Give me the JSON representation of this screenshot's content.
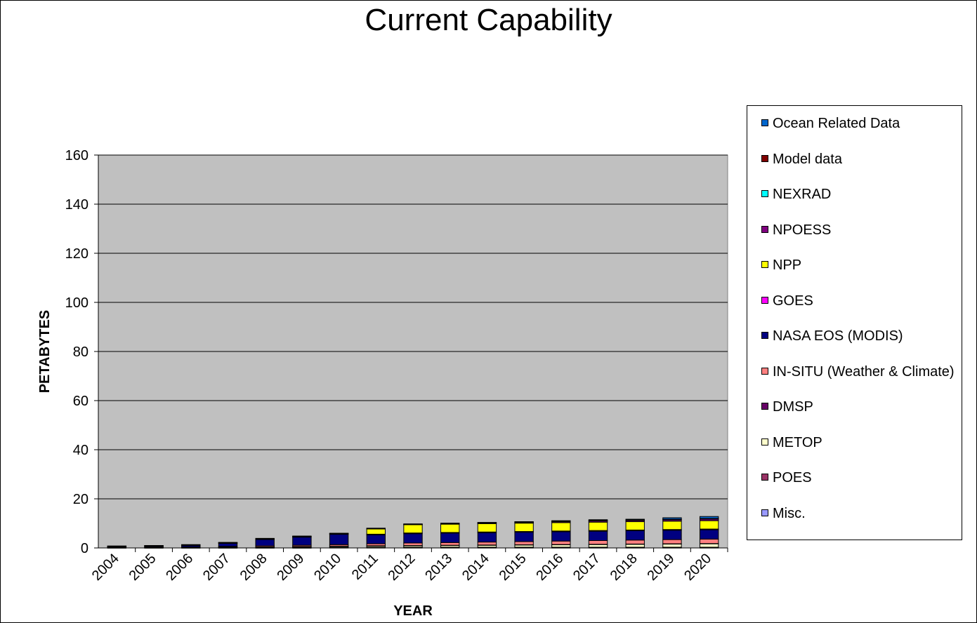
{
  "chart_data": {
    "type": "bar",
    "stacked": true,
    "title": "Current Capability",
    "xlabel": "YEAR",
    "ylabel": "PETABYTES",
    "ylim": [
      0,
      160
    ],
    "yticks": [
      "0",
      "20",
      "40",
      "60",
      "80",
      "100",
      "120",
      "140",
      "160"
    ],
    "grid": true,
    "plot_background": "#C0C0C0",
    "legend_position": "right",
    "categories": [
      "2004",
      "2005",
      "2006",
      "2007",
      "2008",
      "2009",
      "2010",
      "2011",
      "2012",
      "2013",
      "2014",
      "2015",
      "2016",
      "2017",
      "2018",
      "2019",
      "2020"
    ],
    "series": [
      {
        "name": "Misc.",
        "color": "#9999FF",
        "values": [
          0.05,
          0.05,
          0.05,
          0.05,
          0.05,
          0.05,
          0.1,
          0.1,
          0.1,
          0.1,
          0.1,
          0.1,
          0.1,
          0.1,
          0.1,
          0.1,
          0.1
        ]
      },
      {
        "name": "POES",
        "color": "#993366",
        "values": [
          0.1,
          0.1,
          0.1,
          0.1,
          0.1,
          0.15,
          0.15,
          0.2,
          0.2,
          0.2,
          0.2,
          0.2,
          0.2,
          0.2,
          0.2,
          0.2,
          0.2
        ]
      },
      {
        "name": "METOP",
        "color": "#FFFFCC",
        "values": [
          0,
          0,
          0,
          0.1,
          0.2,
          0.3,
          0.4,
          0.5,
          0.6,
          0.7,
          0.8,
          0.9,
          1.0,
          1.1,
          1.2,
          1.3,
          1.4
        ]
      },
      {
        "name": "DMSP",
        "color": "#660066",
        "values": [
          0.1,
          0.1,
          0.1,
          0.1,
          0.1,
          0.1,
          0.1,
          0.1,
          0.1,
          0.1,
          0.1,
          0.1,
          0.1,
          0.1,
          0.1,
          0.1,
          0.1
        ]
      },
      {
        "name": "IN-SITU (Weather & Climate)",
        "color": "#FF8080",
        "values": [
          0.1,
          0.1,
          0.2,
          0.3,
          0.4,
          0.5,
          0.6,
          0.8,
          1.0,
          1.1,
          1.2,
          1.3,
          1.4,
          1.5,
          1.6,
          1.7,
          1.8
        ]
      },
      {
        "name": "NASA EOS (MODIS)",
        "color": "#000080",
        "values": [
          0.2,
          0.4,
          0.6,
          1.2,
          2.6,
          3.3,
          4.2,
          3.6,
          3.8,
          3.8,
          3.8,
          3.8,
          3.8,
          3.8,
          3.8,
          3.8,
          3.8
        ]
      },
      {
        "name": "GOES",
        "color": "#FF00FF",
        "values": [
          0.05,
          0.05,
          0.1,
          0.2,
          0.2,
          0.2,
          0.2,
          0.3,
          0.3,
          0.3,
          0.3,
          0.3,
          0.3,
          0.3,
          0.3,
          0.3,
          0.3
        ]
      },
      {
        "name": "NPP",
        "color": "#FFFF00",
        "values": [
          0,
          0,
          0,
          0,
          0,
          0,
          0,
          2.2,
          3.4,
          3.4,
          3.4,
          3.4,
          3.4,
          3.4,
          3.4,
          3.4,
          3.4
        ]
      },
      {
        "name": "NPOESS",
        "color": "#800080",
        "values": [
          0,
          0,
          0,
          0,
          0,
          0,
          0,
          0,
          0,
          0.1,
          0.2,
          0.3,
          0.4,
          0.5,
          0.5,
          0.6,
          0.7
        ]
      },
      {
        "name": "NEXRAD",
        "color": "#00FFFF",
        "values": [
          0.05,
          0.05,
          0.05,
          0.05,
          0.05,
          0.05,
          0.05,
          0.05,
          0.1,
          0.1,
          0.1,
          0.1,
          0.1,
          0.1,
          0.1,
          0.1,
          0.1
        ]
      },
      {
        "name": "Model data",
        "color": "#800000",
        "values": [
          0.1,
          0.1,
          0.1,
          0.1,
          0.1,
          0.1,
          0.1,
          0.1,
          0.1,
          0.1,
          0.1,
          0.1,
          0.1,
          0.1,
          0.1,
          0.1,
          0.1
        ]
      },
      {
        "name": "Ocean Related Data",
        "color": "#0066CC",
        "values": [
          0.05,
          0.05,
          0.05,
          0.05,
          0.1,
          0.1,
          0.1,
          0.1,
          0.1,
          0.1,
          0.1,
          0.1,
          0.2,
          0.3,
          0.3,
          0.6,
          0.8
        ]
      }
    ],
    "legend_order": [
      "Ocean Related Data",
      "Model data",
      "NEXRAD",
      "NPOESS",
      "NPP",
      "GOES",
      "NASA EOS (MODIS)",
      "IN-SITU (Weather & Climate)",
      "DMSP",
      "METOP",
      "POES",
      "Misc."
    ]
  }
}
